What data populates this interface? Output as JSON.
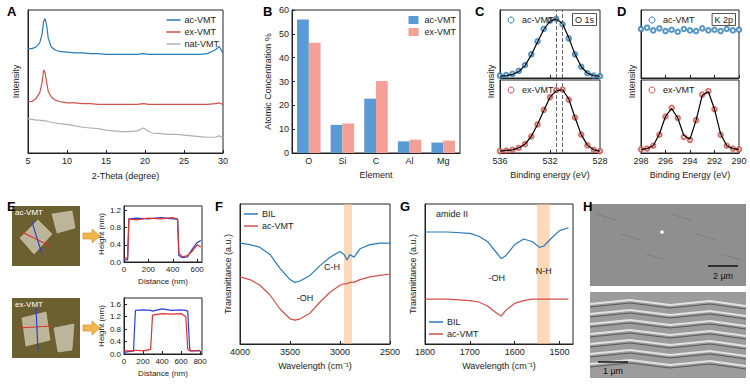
{
  "chart_data": [
    {
      "title": "A",
      "type": "line",
      "xlabel": "2-Theta (degree)",
      "ylabel": "Intensity",
      "x": [
        5,
        5.5,
        6,
        6.5,
        6.8,
        7,
        7.2,
        7.4,
        7.6,
        8,
        8.5,
        9,
        10,
        11,
        12,
        13,
        14,
        15,
        16,
        17,
        18,
        19,
        19.8,
        20.5,
        21,
        22,
        23,
        24,
        25,
        26,
        27,
        28,
        29,
        29.5,
        30
      ],
      "xlim": [
        5,
        30
      ],
      "xticks": [
        5,
        10,
        15,
        20,
        25,
        30
      ],
      "ylim": [
        0,
        10
      ],
      "tick_labels": "x",
      "legend": "upper right",
      "series": [
        {
          "name": "ac-VMT",
          "color": "#2a7ab8",
          "values": [
            7.3,
            7.3,
            7.4,
            7.7,
            8.3,
            9.2,
            9.4,
            8.9,
            8.0,
            7.4,
            7.2,
            7.1,
            7.05,
            7.0,
            7.0,
            6.95,
            6.95,
            6.9,
            6.9,
            6.9,
            6.9,
            6.9,
            6.95,
            6.9,
            6.9,
            6.9,
            6.9,
            6.9,
            6.9,
            6.9,
            6.9,
            6.95,
            7.2,
            7.45,
            7.0
          ]
        },
        {
          "name": "ex-VMT",
          "color": "#d0504a",
          "values": [
            3.6,
            3.6,
            3.8,
            4.2,
            4.9,
            5.8,
            5.6,
            4.9,
            4.3,
            3.9,
            3.7,
            3.6,
            3.5,
            3.5,
            3.45,
            3.45,
            3.4,
            3.4,
            3.4,
            3.4,
            3.4,
            3.4,
            3.45,
            3.4,
            3.4,
            3.4,
            3.4,
            3.4,
            3.4,
            3.4,
            3.4,
            3.4,
            3.45,
            3.5,
            3.4
          ]
        },
        {
          "name": "nat-VMT",
          "color": "#b0b0b0",
          "values": [
            2.4,
            2.35,
            2.3,
            2.3,
            2.25,
            2.3,
            2.2,
            2.25,
            2.2,
            2.15,
            2.1,
            2.05,
            2.0,
            1.9,
            1.8,
            1.75,
            1.7,
            1.6,
            1.55,
            1.5,
            1.5,
            1.55,
            1.75,
            1.5,
            1.4,
            1.35,
            1.3,
            1.3,
            1.25,
            1.2,
            1.15,
            1.1,
            1.1,
            1.2,
            1.05
          ]
        }
      ]
    },
    {
      "title": "B",
      "type": "bar",
      "xlabel": "Element",
      "ylabel": "Atomic Concentration %",
      "categories": [
        "O",
        "Si",
        "C",
        "Al",
        "Mg"
      ],
      "ylim": [
        0,
        60
      ],
      "yticks": [
        0,
        10,
        20,
        30,
        40,
        50,
        60
      ],
      "legend": "upper right",
      "series": [
        {
          "name": "ac-VMT",
          "color": "#5b9bd5",
          "values": [
            56,
            11.8,
            22.8,
            4.9,
            4.4
          ]
        },
        {
          "name": "ex-VMT",
          "color": "#f4a097",
          "values": [
            46.3,
            12.4,
            30.2,
            5.6,
            5.2
          ]
        }
      ]
    },
    {
      "title": "C",
      "type": "scatter",
      "label": "O 1s",
      "xlabel": "Binding energy (eV)",
      "ylabel": "Intensity",
      "x": [
        536,
        535.5,
        535,
        534.5,
        534,
        533.5,
        533,
        532.5,
        532,
        531.5,
        531,
        530.5,
        530,
        529.5,
        529,
        528.5,
        528
      ],
      "xlim": [
        536,
        528
      ],
      "xticks": [
        536,
        532,
        528
      ],
      "tick_labels": "x",
      "legend": "upper left",
      "vlines": [
        531.5,
        531.0
      ],
      "subplots": [
        {
          "ylim": [
            0,
            1.15
          ],
          "series": [
            {
              "name": "ac-VMT",
              "type": "scatter",
              "marker": "circle",
              "color": "#2a7ab8",
              "values": [
                0.04,
                0.05,
                0.07,
                0.12,
                0.22,
                0.4,
                0.62,
                0.83,
                0.97,
                1.0,
                0.91,
                0.67,
                0.4,
                0.19,
                0.08,
                0.04,
                0.03
              ]
            },
            {
              "type": "line",
              "color": "#000000",
              "values": [
                0.03,
                0.04,
                0.06,
                0.11,
                0.21,
                0.39,
                0.61,
                0.82,
                0.96,
                1.0,
                0.92,
                0.68,
                0.4,
                0.19,
                0.08,
                0.04,
                0.03
              ]
            }
          ]
        },
        {
          "ylim": [
            0,
            1.15
          ],
          "series": [
            {
              "name": "ex-VMT",
              "type": "scatter",
              "marker": "circle",
              "color": "#d0504a",
              "values": [
                0.03,
                0.04,
                0.05,
                0.08,
                0.14,
                0.26,
                0.45,
                0.68,
                0.88,
                0.99,
                1.0,
                0.84,
                0.56,
                0.29,
                0.12,
                0.05,
                0.03
              ]
            },
            {
              "type": "line",
              "color": "#000000",
              "values": [
                0.03,
                0.04,
                0.05,
                0.08,
                0.14,
                0.26,
                0.45,
                0.67,
                0.88,
                0.98,
                1.0,
                0.85,
                0.56,
                0.29,
                0.12,
                0.05,
                0.03
              ]
            }
          ]
        }
      ]
    },
    {
      "title": "D",
      "type": "scatter",
      "label": "K 2p",
      "xlabel": "Binding Energy (eV)",
      "ylabel": "Intensity",
      "x": [
        298,
        297.5,
        297,
        296.5,
        296,
        295.5,
        295,
        294.5,
        294,
        293.5,
        293,
        292.5,
        292,
        291.5,
        291,
        290.5,
        290
      ],
      "xlim": [
        298,
        290
      ],
      "xticks": [
        298,
        296,
        294,
        292,
        290
      ],
      "tick_labels": "x",
      "legend": "upper left",
      "subplots": [
        {
          "ylim": [
            0,
            1
          ],
          "series": [
            {
              "name": "ac-VMT",
              "type": "scatter",
              "marker": "circle",
              "color": "#2a7ab8",
              "values": [
                0.72,
                0.74,
                0.7,
                0.73,
                0.69,
                0.71,
                0.68,
                0.72,
                0.7,
                0.69,
                0.73,
                0.7,
                0.71,
                0.69,
                0.72,
                0.7,
                0.71
              ]
            }
          ]
        },
        {
          "ylim": [
            0,
            1
          ],
          "series": [
            {
              "name": "ex-VMT",
              "type": "scatter",
              "marker": "circle",
              "color": "#d0504a",
              "values": [
                0.05,
                0.06,
                0.1,
                0.25,
                0.5,
                0.62,
                0.48,
                0.22,
                0.18,
                0.45,
                0.8,
                0.85,
                0.6,
                0.25,
                0.1,
                0.06,
                0.05
              ]
            },
            {
              "type": "line",
              "color": "#000000",
              "values": [
                0.05,
                0.06,
                0.1,
                0.26,
                0.5,
                0.61,
                0.48,
                0.24,
                0.19,
                0.45,
                0.79,
                0.84,
                0.6,
                0.26,
                0.1,
                0.06,
                0.05
              ]
            }
          ]
        }
      ]
    },
    {
      "type": "line",
      "xlabel": "Distance (nm)",
      "ylabel": "Height (nm)",
      "x": [
        0,
        30,
        40,
        100,
        200,
        300,
        400,
        440,
        450,
        480,
        520,
        560,
        600,
        630
      ],
      "xlim": [
        0,
        640
      ],
      "xticks": [
        0,
        200,
        400,
        600
      ],
      "ylim": [
        0,
        1.3
      ],
      "yticks": [
        {
          "value": 0,
          "label": "0.0"
        },
        0.4,
        0.8,
        1.2
      ],
      "series": [
        {
          "color": "#2b3fd6",
          "values": [
            0.05,
            0.05,
            1.0,
            1.02,
            1.0,
            1.03,
            1.0,
            1.0,
            0.15,
            0.1,
            0.12,
            0.3,
            0.45,
            0.5
          ]
        },
        {
          "color": "#e0302a",
          "values": [
            0.08,
            0.1,
            1.0,
            0.98,
            1.02,
            1.0,
            1.03,
            0.99,
            0.2,
            0.12,
            0.15,
            0.25,
            0.4,
            0.35
          ]
        }
      ]
    },
    {
      "type": "line",
      "xlabel": "Distance (nm)",
      "ylabel": "Height (nm)",
      "x": [
        0,
        100,
        120,
        200,
        280,
        300,
        400,
        500,
        600,
        650,
        670,
        690,
        700,
        800
      ],
      "xlim": [
        0,
        820
      ],
      "xticks": [
        0,
        200,
        400,
        600,
        800
      ],
      "ylim": [
        0,
        1.8
      ],
      "yticks": [
        {
          "value": 0,
          "label": "0.0"
        },
        0.4,
        0.8,
        1.2,
        1.6
      ],
      "series": [
        {
          "color": "#2b3fd6",
          "values": [
            0.05,
            0.1,
            1.4,
            1.42,
            1.4,
            1.38,
            1.45,
            1.4,
            1.42,
            1.4,
            1.38,
            0.2,
            0.1,
            0.1
          ]
        },
        {
          "color": "#e0302a",
          "values": [
            0.1,
            0.1,
            0.12,
            0.1,
            0.15,
            1.25,
            1.3,
            1.28,
            1.3,
            1.2,
            0.15,
            0.1,
            0.1,
            0.12
          ]
        }
      ]
    },
    {
      "title": "F",
      "type": "line",
      "xlabel": "Wavelength (cm⁻¹)",
      "ylabel": "Transmittance (a.u.)",
      "x": [
        4000,
        3900,
        3800,
        3700,
        3600,
        3500,
        3450,
        3400,
        3300,
        3200,
        3100,
        3000,
        2960,
        2930,
        2900,
        2860,
        2800,
        2700,
        2600,
        2500
      ],
      "xlim": [
        4000,
        2500
      ],
      "xticks": [
        4000,
        3500,
        3000,
        2500
      ],
      "ylim": [
        0,
        1
      ],
      "tick_labels": "x",
      "legend": "upper left",
      "highlight": [
        2960,
        2880
      ],
      "annotations": [
        {
          "text": "C-H",
          "x": 3080,
          "y": 0.55
        },
        {
          "text": "-OH",
          "x": 3350,
          "y": 0.33
        }
      ],
      "series": [
        {
          "name": "BIL",
          "color": "#2a7ab8",
          "values": [
            0.72,
            0.71,
            0.69,
            0.64,
            0.54,
            0.46,
            0.44,
            0.45,
            0.49,
            0.56,
            0.62,
            0.66,
            0.64,
            0.6,
            0.64,
            0.62,
            0.68,
            0.71,
            0.72,
            0.72
          ]
        },
        {
          "name": "ac-VMT",
          "color": "#d0504a",
          "values": [
            0.48,
            0.46,
            0.42,
            0.35,
            0.25,
            0.18,
            0.17,
            0.18,
            0.22,
            0.3,
            0.37,
            0.42,
            0.43,
            0.43,
            0.44,
            0.44,
            0.46,
            0.48,
            0.49,
            0.5
          ]
        }
      ]
    },
    {
      "title": "G",
      "type": "line",
      "xlabel": "Wavelength (cm⁻¹)",
      "ylabel": "Transmittance (a.u.)",
      "x": [
        1800,
        1750,
        1700,
        1680,
        1660,
        1640,
        1630,
        1620,
        1600,
        1580,
        1560,
        1545,
        1535,
        1520,
        1500,
        1480
      ],
      "xlim": [
        1800,
        1470
      ],
      "xticks": [
        1800,
        1700,
        1600,
        1500
      ],
      "ylim": [
        0,
        1
      ],
      "tick_labels": "x",
      "legend": "lower left",
      "highlight": [
        1550,
        1522
      ],
      "annotations": [
        {
          "text": "amide II",
          "x": 1740,
          "y": 0.93
        },
        {
          "text": "-OH",
          "x": 1640,
          "y": 0.47
        },
        {
          "text": "N-H",
          "x": 1535,
          "y": 0.52
        }
      ],
      "series": [
        {
          "name": "BIL",
          "color": "#2a7ab8",
          "values": [
            0.8,
            0.8,
            0.79,
            0.77,
            0.73,
            0.65,
            0.61,
            0.63,
            0.71,
            0.75,
            0.73,
            0.69,
            0.7,
            0.75,
            0.81,
            0.83
          ]
        },
        {
          "name": "ac-VMT",
          "color": "#d0504a",
          "values": [
            0.32,
            0.32,
            0.31,
            0.3,
            0.27,
            0.22,
            0.2,
            0.24,
            0.29,
            0.31,
            0.32,
            0.32,
            0.32,
            0.32,
            0.32,
            0.32
          ]
        }
      ]
    }
  ],
  "images": [
    {
      "title": "E",
      "labels": [
        "ac-VMT",
        "ex-VMT"
      ]
    },
    {
      "title": "H",
      "scale_bars": [
        "2 μm",
        "1 μm"
      ]
    }
  ]
}
